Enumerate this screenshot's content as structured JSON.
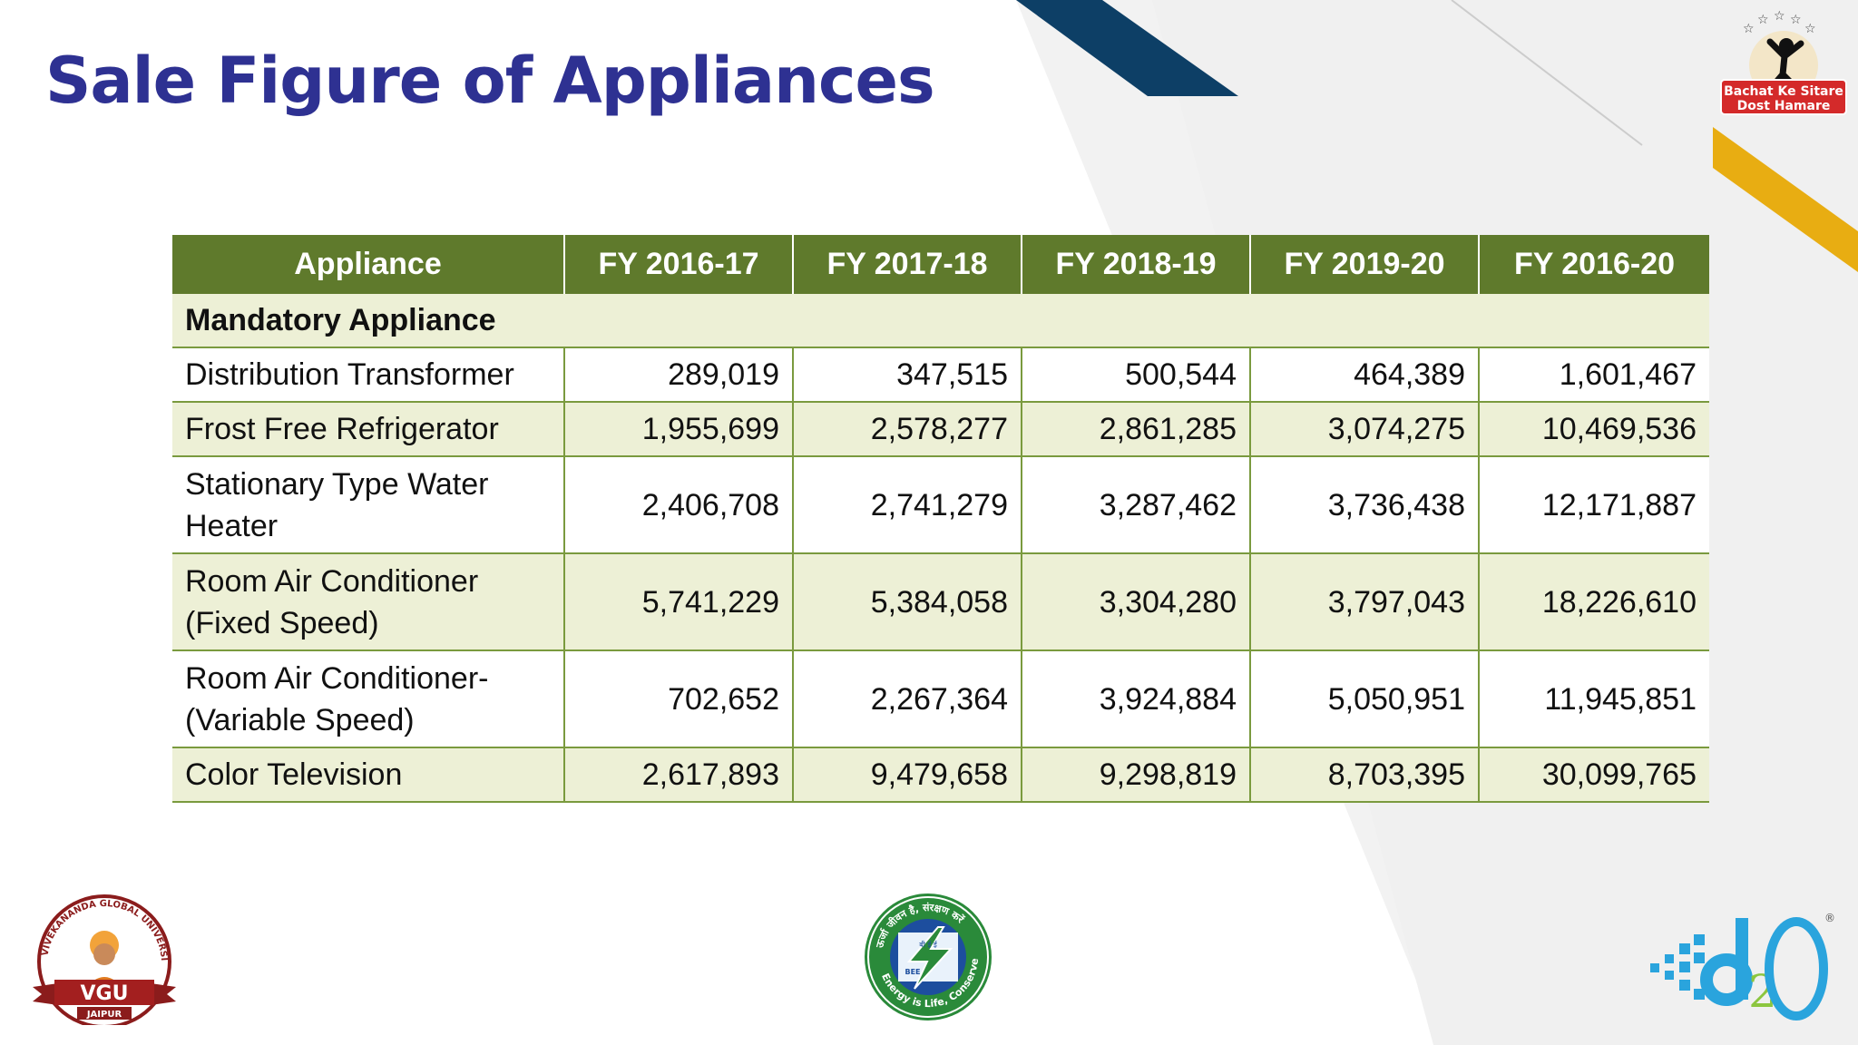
{
  "slide": {
    "title": "Sale Figure of Appliances"
  },
  "table": {
    "headers": [
      "Appliance",
      "FY 2016-17",
      "FY 2017-18",
      "FY 2018-19",
      "FY 2019-20",
      "FY 2016-20"
    ],
    "section_label": "Mandatory Appliance",
    "rows": [
      {
        "name": "Distribution Transformer",
        "values": [
          "289,019",
          "347,515",
          "500,544",
          "464,389",
          "1,601,467"
        ]
      },
      {
        "name": "Frost Free Refrigerator",
        "values": [
          "1,955,699",
          "2,578,277",
          "2,861,285",
          "3,074,275",
          "10,469,536"
        ]
      },
      {
        "name": "Stationary Type Water Heater",
        "values": [
          "2,406,708",
          "2,741,279",
          "3,287,462",
          "3,736,438",
          "12,171,887"
        ]
      },
      {
        "name": "Room Air Conditioner (Fixed Speed)",
        "values": [
          "5,741,229",
          "5,384,058",
          "3,304,280",
          "3,797,043",
          "18,226,610"
        ]
      },
      {
        "name": "Room Air Conditioner- (Variable Speed)",
        "values": [
          "702,652",
          "2,267,364",
          "3,924,884",
          "5,050,951",
          "11,945,851"
        ]
      },
      {
        "name": "Color Television",
        "values": [
          "2,617,893",
          "9,479,658",
          "9,298,819",
          "8,703,395",
          "30,099,765"
        ]
      }
    ]
  },
  "logos": {
    "top_right": {
      "line1": "Bachat Ke Sitare",
      "line2": "Dost Hamare"
    },
    "vgu": {
      "arc_text": "VIVEKANANDA GLOBAL UNIVERSITY",
      "name": "VGU",
      "city": "JAIPUR"
    },
    "bee": {
      "top_text": "ऊर्जा जीवन है, संरक्षण करें",
      "center_text": "बी ई ई",
      "abbr": "BEE",
      "bottom_text": "Energy is Life, Conserve it"
    },
    "d2o": {
      "registered": "®"
    }
  },
  "colors": {
    "title": "#2e3192",
    "header_bg": "#5f7a2c",
    "band_bg": "#edf0d6",
    "navy_stripe": "#0d3f66",
    "gold_stripe": "#e8ad12"
  }
}
